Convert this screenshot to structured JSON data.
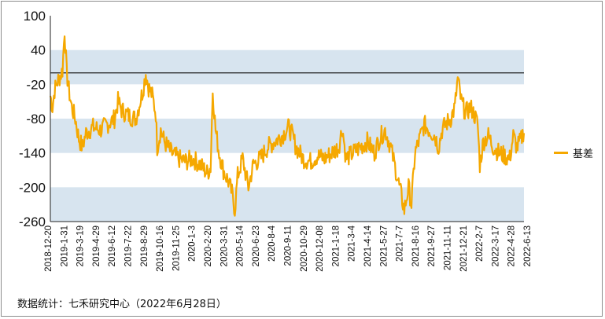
{
  "chart_data": {
    "type": "line",
    "title": "",
    "xlabel": "",
    "ylabel": "",
    "ylim": [
      -260,
      100
    ],
    "yticks": [
      100,
      40,
      -20,
      -80,
      -140,
      -200,
      -260
    ],
    "reference_line": 0,
    "band_color": "#d7e4ef",
    "line_color": "#f5a800",
    "legend_position": "right",
    "x_tick_labels": [
      "2018-12-20",
      "2019-1-31",
      "2019-3-19",
      "2019-4-29",
      "2019-6-12",
      "2019-7-22",
      "2019-8-29",
      "2019-10-16",
      "2019-11-25",
      "2020-1-3",
      "2020-2-20",
      "2020-3-31",
      "2020-5-14",
      "2020-6-23",
      "2020-8-4",
      "2020-9-11",
      "2020-10-29",
      "2020-12-08",
      "2021-1-18",
      "2021-3-4",
      "2021-4-14",
      "2021-5-27",
      "2021-7-7",
      "2021-8-16",
      "2021-9-27",
      "2021-11-11",
      "2021-12-21",
      "2022-2-7",
      "2022-3-17",
      "2022-4-28",
      "2022-6-13"
    ],
    "series": [
      {
        "name": "基差",
        "anchors": [
          {
            "x": 0,
            "y": -40
          },
          {
            "x": 3,
            "y": -60
          },
          {
            "x": 6,
            "y": -30
          },
          {
            "x": 10,
            "y": -15
          },
          {
            "x": 14,
            "y": -5
          },
          {
            "x": 17,
            "y": 5
          },
          {
            "x": 20,
            "y": 75
          },
          {
            "x": 23,
            "y": 0
          },
          {
            "x": 26,
            "y": -30
          },
          {
            "x": 30,
            "y": -60
          },
          {
            "x": 35,
            "y": -80
          },
          {
            "x": 40,
            "y": -115
          },
          {
            "x": 45,
            "y": -130
          },
          {
            "x": 50,
            "y": -105
          },
          {
            "x": 55,
            "y": -100
          },
          {
            "x": 60,
            "y": -95
          },
          {
            "x": 70,
            "y": -100
          },
          {
            "x": 80,
            "y": -90
          },
          {
            "x": 90,
            "y": -80
          },
          {
            "x": 95,
            "y": -50
          },
          {
            "x": 100,
            "y": -65
          },
          {
            "x": 110,
            "y": -75
          },
          {
            "x": 120,
            "y": -80
          },
          {
            "x": 126,
            "y": -50
          },
          {
            "x": 130,
            "y": -30
          },
          {
            "x": 134,
            "y": 0
          },
          {
            "x": 138,
            "y": -25
          },
          {
            "x": 143,
            "y": -40
          },
          {
            "x": 148,
            "y": -70
          },
          {
            "x": 150,
            "y": -130
          },
          {
            "x": 155,
            "y": -100
          },
          {
            "x": 160,
            "y": -120
          },
          {
            "x": 170,
            "y": -140
          },
          {
            "x": 180,
            "y": -150
          },
          {
            "x": 190,
            "y": -155
          },
          {
            "x": 200,
            "y": -150
          },
          {
            "x": 210,
            "y": -160
          },
          {
            "x": 220,
            "y": -175
          },
          {
            "x": 225,
            "y": -165
          },
          {
            "x": 228,
            "y": -30
          },
          {
            "x": 232,
            "y": -100
          },
          {
            "x": 237,
            "y": -140
          },
          {
            "x": 243,
            "y": -170
          },
          {
            "x": 250,
            "y": -190
          },
          {
            "x": 255,
            "y": -210
          },
          {
            "x": 259,
            "y": -240
          },
          {
            "x": 263,
            "y": -180
          },
          {
            "x": 270,
            "y": -150
          },
          {
            "x": 278,
            "y": -200
          },
          {
            "x": 285,
            "y": -160
          },
          {
            "x": 295,
            "y": -150
          },
          {
            "x": 305,
            "y": -130
          },
          {
            "x": 315,
            "y": -120
          },
          {
            "x": 325,
            "y": -110
          },
          {
            "x": 335,
            "y": -95
          },
          {
            "x": 340,
            "y": -110
          },
          {
            "x": 345,
            "y": -130
          },
          {
            "x": 355,
            "y": -150
          },
          {
            "x": 365,
            "y": -155
          },
          {
            "x": 375,
            "y": -145
          },
          {
            "x": 385,
            "y": -150
          },
          {
            "x": 395,
            "y": -140
          },
          {
            "x": 405,
            "y": -130
          },
          {
            "x": 410,
            "y": -95
          },
          {
            "x": 415,
            "y": -150
          },
          {
            "x": 425,
            "y": -140
          },
          {
            "x": 435,
            "y": -130
          },
          {
            "x": 445,
            "y": -120
          },
          {
            "x": 455,
            "y": -140
          },
          {
            "x": 462,
            "y": -115
          },
          {
            "x": 470,
            "y": -100
          },
          {
            "x": 478,
            "y": -130
          },
          {
            "x": 485,
            "y": -170
          },
          {
            "x": 492,
            "y": -210
          },
          {
            "x": 497,
            "y": -240
          },
          {
            "x": 503,
            "y": -200
          },
          {
            "x": 507,
            "y": -230
          },
          {
            "x": 512,
            "y": -140
          },
          {
            "x": 520,
            "y": -110
          },
          {
            "x": 525,
            "y": -90
          },
          {
            "x": 532,
            "y": -100
          },
          {
            "x": 540,
            "y": -110
          },
          {
            "x": 545,
            "y": -130
          },
          {
            "x": 550,
            "y": -100
          },
          {
            "x": 555,
            "y": -90
          },
          {
            "x": 562,
            "y": -80
          },
          {
            "x": 568,
            "y": -60
          },
          {
            "x": 572,
            "y": -10
          },
          {
            "x": 577,
            "y": -50
          },
          {
            "x": 583,
            "y": -70
          },
          {
            "x": 590,
            "y": -60
          },
          {
            "x": 596,
            "y": -75
          },
          {
            "x": 600,
            "y": -90
          },
          {
            "x": 603,
            "y": -160
          },
          {
            "x": 608,
            "y": -120
          },
          {
            "x": 615,
            "y": -110
          },
          {
            "x": 622,
            "y": -130
          },
          {
            "x": 630,
            "y": -140
          },
          {
            "x": 638,
            "y": -145
          },
          {
            "x": 645,
            "y": -150
          },
          {
            "x": 650,
            "y": -110
          },
          {
            "x": 655,
            "y": -130
          },
          {
            "x": 660,
            "y": -120
          },
          {
            "x": 665,
            "y": -100
          }
        ]
      }
    ]
  },
  "legend": {
    "label": "基差"
  },
  "source_note": "数据统计：七禾研究中心（2022年6月28日）"
}
